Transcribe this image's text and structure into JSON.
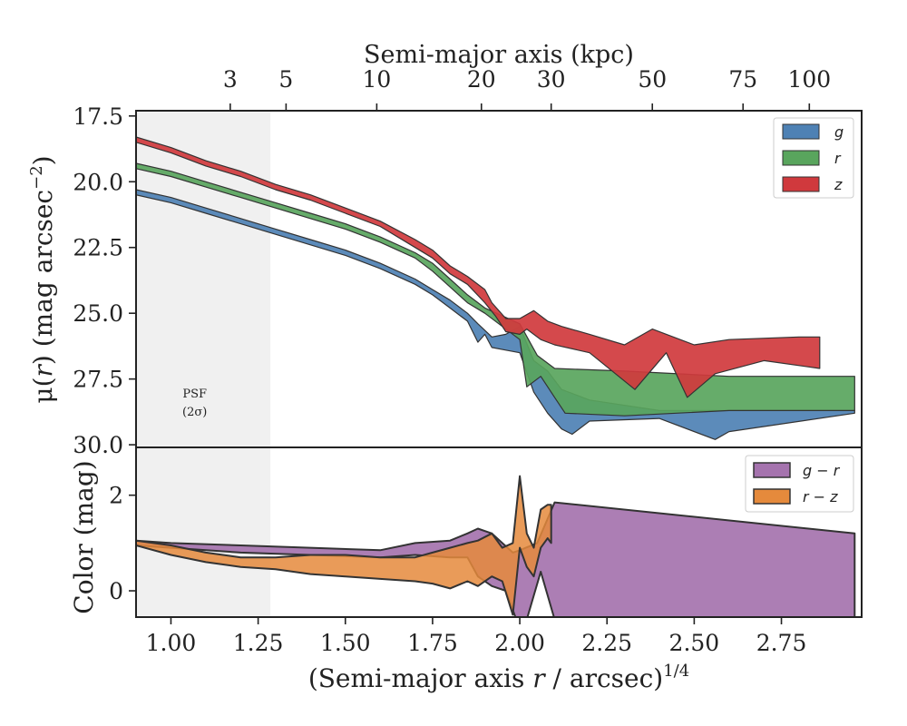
{
  "chart_data": [
    {
      "type": "area",
      "panel": "surface-brightness",
      "top_axis": {
        "label": "Semi-major axis (kpc)",
        "ticks": [
          {
            "label": "3",
            "x_r14": 1.17
          },
          {
            "label": "5",
            "x_r14": 1.33
          },
          {
            "label": "10",
            "x_r14": 1.59
          },
          {
            "label": "20",
            "x_r14": 1.89
          },
          {
            "label": "30",
            "x_r14": 2.09
          },
          {
            "label": "50",
            "x_r14": 2.38
          },
          {
            "label": "75",
            "x_r14": 2.64
          },
          {
            "label": "100",
            "x_r14": 2.83
          }
        ]
      },
      "ylabel_html": "μ(r) (mag arcsec⁻²)",
      "ylabel_parts": {
        "mu": "μ",
        "open": "(",
        "r": "r",
        "rest": ") (mag arcsec",
        "sup": "−2",
        "close": ")"
      },
      "xlim": [
        0.9,
        2.98
      ],
      "ylim": [
        30.1,
        17.3
      ],
      "yticks": [
        17.5,
        20.0,
        22.5,
        25.0,
        27.5,
        30.0
      ],
      "ytick_labels": [
        "17.5",
        "20.0",
        "22.5",
        "25.0",
        "27.5",
        "30.0"
      ],
      "psf_region": {
        "x_max": 1.285,
        "label_line1": "PSF",
        "label_line2": "(2σ)",
        "label_x": 1.05,
        "label_y": 28.2
      },
      "legend": {
        "location": "top-right",
        "entries": [
          "g",
          "r",
          "z"
        ]
      },
      "series": [
        {
          "name": "g",
          "color": "#4e81b4",
          "upper": [
            [
              0.9,
              20.3
            ],
            [
              1.0,
              20.6
            ],
            [
              1.1,
              21.0
            ],
            [
              1.2,
              21.4
            ],
            [
              1.3,
              21.8
            ],
            [
              1.4,
              22.2
            ],
            [
              1.5,
              22.6
            ],
            [
              1.6,
              23.1
            ],
            [
              1.7,
              23.7
            ],
            [
              1.75,
              24.1
            ],
            [
              1.8,
              24.5
            ],
            [
              1.85,
              25.0
            ],
            [
              1.88,
              25.4
            ],
            [
              1.92,
              25.9
            ],
            [
              1.96,
              25.8
            ],
            [
              2.0,
              25.5
            ],
            [
              2.04,
              26.8
            ],
            [
              2.08,
              27.2
            ],
            [
              2.12,
              27.9
            ],
            [
              2.2,
              28.3
            ],
            [
              2.4,
              28.7
            ],
            [
              2.6,
              28.7
            ],
            [
              2.96,
              28.7
            ]
          ],
          "lower": [
            [
              0.9,
              20.5
            ],
            [
              1.0,
              20.8
            ],
            [
              1.1,
              21.2
            ],
            [
              1.2,
              21.6
            ],
            [
              1.3,
              22.0
            ],
            [
              1.4,
              22.4
            ],
            [
              1.5,
              22.8
            ],
            [
              1.6,
              23.3
            ],
            [
              1.7,
              23.9
            ],
            [
              1.75,
              24.3
            ],
            [
              1.8,
              24.8
            ],
            [
              1.85,
              25.3
            ],
            [
              1.88,
              26.1
            ],
            [
              1.9,
              25.8
            ],
            [
              1.92,
              26.3
            ],
            [
              1.96,
              26.4
            ],
            [
              2.0,
              26.5
            ],
            [
              2.04,
              28.0
            ],
            [
              2.08,
              28.8
            ],
            [
              2.12,
              29.4
            ],
            [
              2.15,
              29.6
            ],
            [
              2.2,
              29.1
            ],
            [
              2.4,
              29.0
            ],
            [
              2.56,
              29.8
            ],
            [
              2.6,
              29.5
            ],
            [
              2.96,
              28.8
            ]
          ]
        },
        {
          "name": "r",
          "color": "#59a55d",
          "upper": [
            [
              0.9,
              19.3
            ],
            [
              1.0,
              19.6
            ],
            [
              1.1,
              20.0
            ],
            [
              1.2,
              20.4
            ],
            [
              1.3,
              20.8
            ],
            [
              1.4,
              21.2
            ],
            [
              1.5,
              21.6
            ],
            [
              1.6,
              22.1
            ],
            [
              1.7,
              22.7
            ],
            [
              1.75,
              23.1
            ],
            [
              1.8,
              23.7
            ],
            [
              1.85,
              24.3
            ],
            [
              1.9,
              24.8
            ],
            [
              1.95,
              25.1
            ],
            [
              2.0,
              25.4
            ],
            [
              2.05,
              26.6
            ],
            [
              2.1,
              27.1
            ],
            [
              2.3,
              27.2
            ],
            [
              2.6,
              27.4
            ],
            [
              2.96,
              27.4
            ]
          ],
          "lower": [
            [
              0.9,
              19.5
            ],
            [
              1.0,
              19.8
            ],
            [
              1.1,
              20.2
            ],
            [
              1.2,
              20.6
            ],
            [
              1.3,
              21.0
            ],
            [
              1.4,
              21.4
            ],
            [
              1.5,
              21.8
            ],
            [
              1.6,
              22.3
            ],
            [
              1.7,
              22.9
            ],
            [
              1.75,
              23.4
            ],
            [
              1.8,
              24.0
            ],
            [
              1.85,
              24.6
            ],
            [
              1.9,
              25.0
            ],
            [
              1.95,
              25.5
            ],
            [
              2.0,
              26.0
            ],
            [
              2.02,
              27.8
            ],
            [
              2.06,
              27.4
            ],
            [
              2.1,
              28.2
            ],
            [
              2.13,
              28.8
            ],
            [
              2.3,
              28.9
            ],
            [
              2.6,
              28.7
            ],
            [
              2.96,
              28.7
            ]
          ]
        },
        {
          "name": "z",
          "color": "#d0393d",
          "upper": [
            [
              0.9,
              18.3
            ],
            [
              1.0,
              18.7
            ],
            [
              1.1,
              19.2
            ],
            [
              1.2,
              19.6
            ],
            [
              1.3,
              20.1
            ],
            [
              1.4,
              20.5
            ],
            [
              1.5,
              21.0
            ],
            [
              1.6,
              21.5
            ],
            [
              1.7,
              22.2
            ],
            [
              1.75,
              22.6
            ],
            [
              1.8,
              23.2
            ],
            [
              1.85,
              23.6
            ],
            [
              1.9,
              24.1
            ],
            [
              1.92,
              24.6
            ],
            [
              1.96,
              25.2
            ],
            [
              2.0,
              25.2
            ],
            [
              2.04,
              24.9
            ],
            [
              2.08,
              25.3
            ],
            [
              2.12,
              25.5
            ],
            [
              2.2,
              25.8
            ],
            [
              2.3,
              26.2
            ],
            [
              2.38,
              25.6
            ],
            [
              2.5,
              26.2
            ],
            [
              2.6,
              26.0
            ],
            [
              2.8,
              25.9
            ],
            [
              2.86,
              25.9
            ]
          ],
          "lower": [
            [
              0.9,
              18.5
            ],
            [
              1.0,
              18.9
            ],
            [
              1.1,
              19.4
            ],
            [
              1.2,
              19.8
            ],
            [
              1.3,
              20.3
            ],
            [
              1.4,
              20.7
            ],
            [
              1.5,
              21.2
            ],
            [
              1.6,
              21.7
            ],
            [
              1.7,
              22.5
            ],
            [
              1.75,
              22.9
            ],
            [
              1.8,
              23.5
            ],
            [
              1.85,
              23.9
            ],
            [
              1.9,
              24.6
            ],
            [
              1.93,
              25.1
            ],
            [
              1.96,
              25.7
            ],
            [
              2.0,
              25.8
            ],
            [
              2.02,
              25.6
            ],
            [
              2.06,
              26.0
            ],
            [
              2.1,
              26.2
            ],
            [
              2.2,
              26.5
            ],
            [
              2.33,
              27.9
            ],
            [
              2.42,
              26.5
            ],
            [
              2.48,
              28.2
            ],
            [
              2.56,
              27.3
            ],
            [
              2.7,
              26.8
            ],
            [
              2.86,
              27.1
            ]
          ]
        }
      ]
    },
    {
      "type": "area",
      "panel": "color",
      "xlabel_parts": {
        "pre": "(Semi-major axis ",
        "r": "r",
        "post": " / arcsec)",
        "sup": "1/4"
      },
      "ylabel": "Color (mag)",
      "xlim": [
        0.9,
        2.98
      ],
      "ylim": [
        -0.55,
        3.0
      ],
      "xticks": [
        1.0,
        1.25,
        1.5,
        1.75,
        2.0,
        2.25,
        2.5,
        2.75
      ],
      "xtick_labels": [
        "1.00",
        "1.25",
        "1.50",
        "1.75",
        "2.00",
        "2.25",
        "2.50",
        "2.75"
      ],
      "yticks": [
        0,
        2
      ],
      "ytick_labels": [
        "0",
        "2"
      ],
      "legend": {
        "location": "top-right",
        "entries": [
          "g − r",
          "r − z"
        ]
      },
      "series": [
        {
          "name": "g-r",
          "color": "#a573ae",
          "upper": [
            [
              0.9,
              1.05
            ],
            [
              1.0,
              1.0
            ],
            [
              1.2,
              0.95
            ],
            [
              1.4,
              0.9
            ],
            [
              1.6,
              0.85
            ],
            [
              1.7,
              1.0
            ],
            [
              1.8,
              1.05
            ],
            [
              1.85,
              1.2
            ],
            [
              1.88,
              1.3
            ],
            [
              1.92,
              1.2
            ],
            [
              1.95,
              1.0
            ],
            [
              1.98,
              0.8
            ],
            [
              2.0,
              0.85
            ],
            [
              2.05,
              1.0
            ],
            [
              2.1,
              1.85
            ],
            [
              2.96,
              1.2
            ]
          ],
          "lower": [
            [
              0.9,
              0.95
            ],
            [
              1.0,
              0.9
            ],
            [
              1.2,
              0.8
            ],
            [
              1.4,
              0.75
            ],
            [
              1.6,
              0.7
            ],
            [
              1.7,
              0.75
            ],
            [
              1.8,
              0.7
            ],
            [
              1.85,
              0.7
            ],
            [
              1.88,
              0.3
            ],
            [
              1.92,
              0.1
            ],
            [
              1.96,
              0.0
            ],
            [
              1.99,
              -0.6
            ],
            [
              2.02,
              -0.6
            ],
            [
              2.06,
              0.4
            ],
            [
              2.1,
              -0.6
            ],
            [
              2.96,
              -0.6
            ]
          ]
        },
        {
          "name": "r-z",
          "color": "#e58a3c",
          "upper": [
            [
              0.9,
              1.05
            ],
            [
              1.0,
              0.95
            ],
            [
              1.1,
              0.8
            ],
            [
              1.2,
              0.7
            ],
            [
              1.3,
              0.7
            ],
            [
              1.4,
              0.75
            ],
            [
              1.5,
              0.75
            ],
            [
              1.6,
              0.7
            ],
            [
              1.7,
              0.7
            ],
            [
              1.75,
              0.8
            ],
            [
              1.8,
              0.9
            ],
            [
              1.85,
              1.0
            ],
            [
              1.88,
              1.05
            ],
            [
              1.92,
              1.2
            ],
            [
              1.95,
              0.9
            ],
            [
              1.98,
              1.0
            ],
            [
              2.0,
              2.4
            ],
            [
              2.02,
              1.2
            ],
            [
              2.04,
              0.9
            ],
            [
              2.06,
              1.7
            ],
            [
              2.08,
              1.8
            ],
            [
              2.09,
              1.8
            ]
          ],
          "lower": [
            [
              0.9,
              0.95
            ],
            [
              1.0,
              0.75
            ],
            [
              1.1,
              0.6
            ],
            [
              1.2,
              0.5
            ],
            [
              1.3,
              0.45
            ],
            [
              1.4,
              0.35
            ],
            [
              1.5,
              0.3
            ],
            [
              1.6,
              0.25
            ],
            [
              1.7,
              0.2
            ],
            [
              1.75,
              0.15
            ],
            [
              1.8,
              0.05
            ],
            [
              1.85,
              0.2
            ],
            [
              1.88,
              0.1
            ],
            [
              1.92,
              0.3
            ],
            [
              1.95,
              0.2
            ],
            [
              1.98,
              -0.5
            ],
            [
              2.0,
              0.9
            ],
            [
              2.02,
              0.5
            ],
            [
              2.04,
              0.3
            ],
            [
              2.06,
              0.9
            ],
            [
              2.08,
              1.1
            ],
            [
              2.09,
              1.0
            ]
          ]
        }
      ]
    }
  ]
}
